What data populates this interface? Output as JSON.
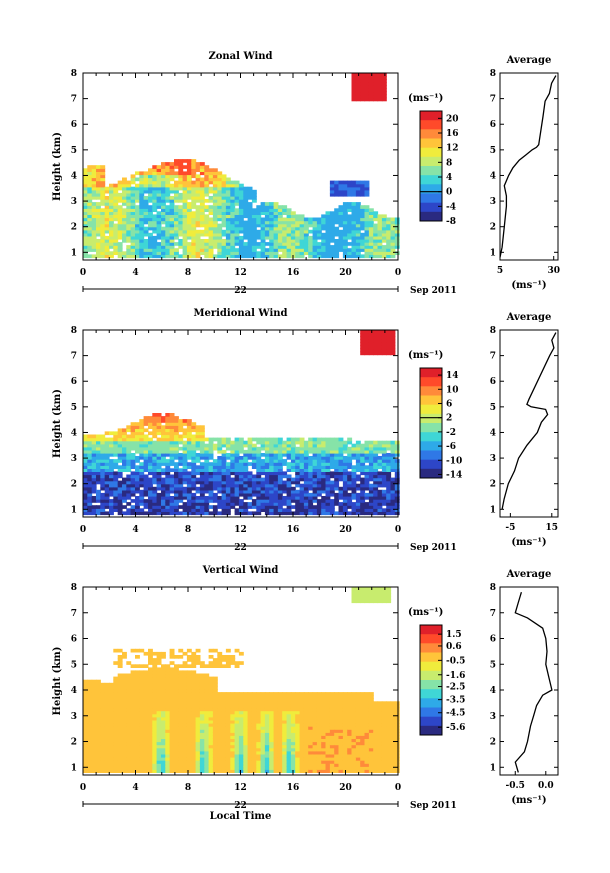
{
  "figure": {
    "x_axis_title": "Local Time",
    "date_label": "Sep 2011",
    "day_label": "22",
    "avg_title": "Average",
    "ylabel": "Height (km)",
    "unit_label": "(ms⁻¹)",
    "xticks": [
      "0",
      "4",
      "8",
      "12",
      "16",
      "20",
      "0"
    ],
    "yticks": [
      "1",
      "2",
      "3",
      "4",
      "5",
      "6",
      "7",
      "8"
    ]
  },
  "colormap": [
    "#2a2a80",
    "#2d46c8",
    "#2f78e6",
    "#2eaae8",
    "#3fd6d6",
    "#86e3a8",
    "#c8ec6e",
    "#f0ec3c",
    "#ffc43a",
    "#ff8a3a",
    "#ff4a2a",
    "#e0202a"
  ],
  "chart_data": [
    {
      "type": "heatmap",
      "title": "Zonal Wind",
      "xlabel": "",
      "ylabel": "Height (km)",
      "x_ticks": [
        "0",
        "4",
        "8",
        "12",
        "16",
        "20",
        "0"
      ],
      "ylim": [
        0.7,
        8
      ],
      "colorbar": {
        "min": -8,
        "max": 22,
        "ticks": [
          "20",
          "16",
          "12",
          "8",
          "4",
          "0",
          "-4",
          "-8"
        ]
      },
      "average_profile": {
        "xlim": [
          5,
          32
        ],
        "xticks": [
          "5",
          "30"
        ],
        "xlabel": "(ms⁻¹)",
        "points": [
          [
            5,
            0.8
          ],
          [
            6,
            1.2
          ],
          [
            7,
            2.0
          ],
          [
            8,
            2.8
          ],
          [
            8,
            3.2
          ],
          [
            7,
            3.6
          ],
          [
            9,
            4.0
          ],
          [
            11,
            4.3
          ],
          [
            14,
            4.6
          ],
          [
            17,
            4.8
          ],
          [
            20,
            5.0
          ],
          [
            22,
            5.1
          ],
          [
            23,
            5.2
          ],
          [
            25,
            6.3
          ],
          [
            26,
            6.9
          ],
          [
            28,
            7.2
          ],
          [
            29,
            7.6
          ],
          [
            31,
            7.9
          ]
        ]
      }
    },
    {
      "type": "heatmap",
      "title": "Meridional Wind",
      "xlabel": "",
      "ylabel": "Height (km)",
      "x_ticks": [
        "0",
        "4",
        "8",
        "12",
        "16",
        "20",
        "0"
      ],
      "ylim": [
        0.7,
        8
      ],
      "colorbar": {
        "min": -15,
        "max": 16,
        "ticks": [
          "14",
          "10",
          "6",
          "2",
          "-2",
          "-6",
          "-10",
          "-14"
        ]
      },
      "average_profile": {
        "xlim": [
          -10,
          18
        ],
        "xticks": [
          "-5",
          "15"
        ],
        "xlabel": "(ms⁻¹)",
        "points": [
          [
            -9,
            1.0
          ],
          [
            -8,
            1.4
          ],
          [
            -6,
            2.0
          ],
          [
            -3,
            2.5
          ],
          [
            -1,
            3.0
          ],
          [
            3,
            3.5
          ],
          [
            8,
            4.0
          ],
          [
            10,
            4.4
          ],
          [
            13,
            4.7
          ],
          [
            12,
            4.9
          ],
          [
            5,
            5.0
          ],
          [
            3,
            5.1
          ],
          [
            4,
            5.3
          ],
          [
            14,
            7.0
          ],
          [
            16,
            7.3
          ],
          [
            15,
            7.6
          ],
          [
            17,
            7.9
          ]
        ]
      }
    },
    {
      "type": "heatmap",
      "title": "Vertical Wind",
      "xlabel": "Local Time",
      "ylabel": "Height (km)",
      "x_ticks": [
        "0",
        "4",
        "8",
        "12",
        "16",
        "20",
        "0"
      ],
      "ylim": [
        0.7,
        8
      ],
      "colorbar": {
        "min": -6.2,
        "max": 2.2,
        "ticks": [
          "1.5",
          "0.6",
          "-0.5",
          "-1.6",
          "-2.5",
          "-3.5",
          "-4.5",
          "-5.6"
        ]
      },
      "average_profile": {
        "xlim": [
          -0.75,
          0.2
        ],
        "xticks": [
          "-0.5",
          "0.0"
        ],
        "xlabel": "(ms⁻¹)",
        "points": [
          [
            -0.45,
            0.8
          ],
          [
            -0.5,
            1.2
          ],
          [
            -0.35,
            1.6
          ],
          [
            -0.3,
            2.0
          ],
          [
            -0.25,
            2.6
          ],
          [
            -0.2,
            3.0
          ],
          [
            -0.15,
            3.4
          ],
          [
            -0.05,
            3.8
          ],
          [
            0.1,
            4.0
          ],
          [
            0.05,
            4.5
          ],
          [
            0.0,
            5.0
          ],
          [
            0.02,
            5.5
          ],
          [
            0.0,
            6.0
          ],
          [
            -0.05,
            6.4
          ],
          [
            -0.3,
            6.8
          ],
          [
            -0.5,
            7.0
          ],
          [
            -0.45,
            7.4
          ],
          [
            -0.4,
            7.8
          ]
        ]
      }
    }
  ]
}
